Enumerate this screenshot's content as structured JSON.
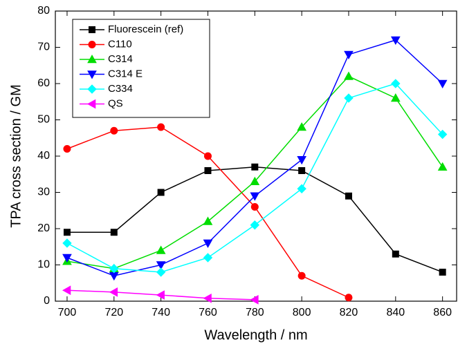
{
  "chart_data": {
    "type": "line",
    "xlabel": "Wavelength / nm",
    "ylabel": "TPA cross section / GM",
    "xlim": [
      695,
      866
    ],
    "ylim": [
      0,
      80
    ],
    "xticks": [
      700,
      720,
      740,
      760,
      780,
      800,
      820,
      840,
      860
    ],
    "yticks": [
      0,
      10,
      20,
      30,
      40,
      50,
      60,
      70,
      80
    ],
    "legend": "upper-left",
    "series": [
      {
        "name": "Fluorescein (ref)",
        "color": "#000000",
        "marker": "square",
        "x": [
          700,
          720,
          740,
          760,
          780,
          800,
          820,
          840,
          860
        ],
        "values": [
          19,
          19,
          30,
          36,
          37,
          36,
          29,
          13,
          8
        ]
      },
      {
        "name": "C110",
        "color": "#ff0000",
        "marker": "circle",
        "x": [
          700,
          720,
          740,
          760,
          780,
          800,
          820
        ],
        "values": [
          42,
          47,
          48,
          40,
          26,
          7,
          1
        ]
      },
      {
        "name": "C314",
        "color": "#00dd00",
        "marker": "triangle-up",
        "x": [
          700,
          720,
          740,
          760,
          780,
          800,
          820,
          840,
          860
        ],
        "values": [
          11,
          9,
          14,
          22,
          33,
          48,
          62,
          56,
          37
        ]
      },
      {
        "name": "C314 E",
        "color": "#0000ff",
        "marker": "triangle-down",
        "x": [
          700,
          720,
          740,
          760,
          780,
          800,
          820,
          840,
          860
        ],
        "values": [
          12,
          7,
          10,
          16,
          29,
          39,
          68,
          72,
          60
        ]
      },
      {
        "name": "C334",
        "color": "#00ffff",
        "marker": "diamond",
        "x": [
          700,
          720,
          740,
          760,
          780,
          800,
          820,
          840,
          860
        ],
        "values": [
          16,
          9,
          8,
          12,
          21,
          31,
          56,
          60,
          46
        ]
      },
      {
        "name": "QS",
        "color": "#ff00ff",
        "marker": "triangle-left",
        "x": [
          700,
          720,
          740,
          760,
          780
        ],
        "values": [
          3,
          2.5,
          1.7,
          0.8,
          0.4
        ]
      }
    ]
  }
}
